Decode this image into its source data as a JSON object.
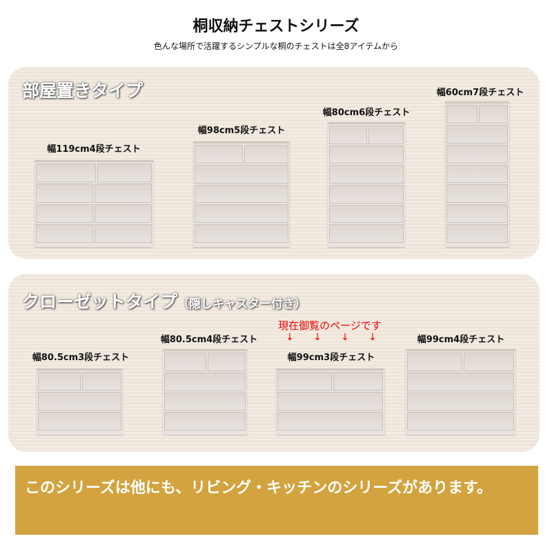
{
  "header": {
    "title": "桐収納チェストシリーズ",
    "subtitle": "色んな場所で活躍するシンプルな桐のチェストは全8アイテムから"
  },
  "room_section": {
    "title": "部屋置きタイプ",
    "products": [
      {
        "label": "幅119cm4段チェスト",
        "drawers": 4,
        "split_all": true
      },
      {
        "label": "幅98cm5段チェスト",
        "drawers": 5
      },
      {
        "label": "幅80cm6段チェスト",
        "drawers": 6
      },
      {
        "label": "幅60cm7段チェスト",
        "drawers": 7
      }
    ]
  },
  "closet_section": {
    "title": "クローゼットタイプ",
    "subtitle": "（隠しキャスター付き）",
    "current_note": "現在御覧のページです",
    "arrow": "↓",
    "products": [
      {
        "label": "幅80.5cm3段チェスト",
        "drawers": 3
      },
      {
        "label": "幅80.5cm4段チェスト",
        "drawers": 4
      },
      {
        "label": "幅99cm3段チェスト",
        "drawers": 3,
        "current": true
      },
      {
        "label": "幅99cm4段チェスト",
        "drawers": 4
      }
    ]
  },
  "banner": {
    "text": "このシリーズは他にも、リビング・キッチンのシリーズがあります。",
    "color": "#d2a33f"
  }
}
